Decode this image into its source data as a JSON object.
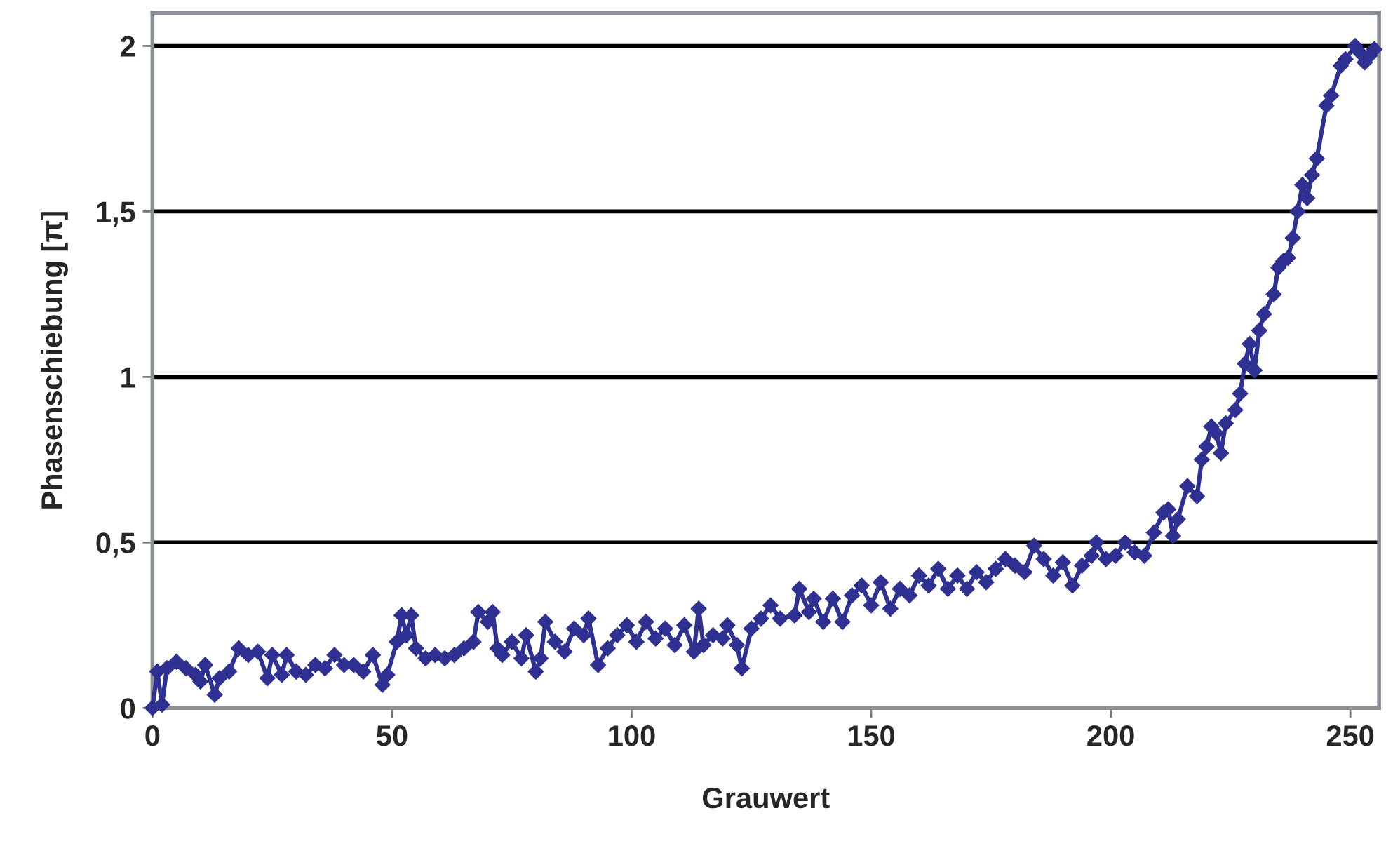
{
  "chart_data": {
    "type": "line",
    "xlabel": "Grauwert",
    "ylabel": "Phasenschiebung [π]",
    "xlim": [
      0,
      256
    ],
    "ylim": [
      0,
      2.1
    ],
    "xticks": [
      0,
      50,
      100,
      150,
      200,
      250
    ],
    "yticks": [
      0,
      {
        "value": 0.5,
        "label": "0,5"
      },
      1,
      {
        "value": 1.5,
        "label": "1,5"
      },
      2
    ],
    "grid": "y",
    "marker": "diamond",
    "line_style": "solid",
    "legend": false,
    "series": [
      {
        "color": "#2e3192",
        "x": [
          0,
          1,
          2,
          3,
          5,
          7,
          9,
          10,
          11,
          13,
          14,
          16,
          18,
          20,
          22,
          24,
          25,
          27,
          28,
          30,
          32,
          34,
          36,
          38,
          40,
          42,
          44,
          46,
          48,
          49,
          51,
          52,
          53,
          54,
          55,
          57,
          59,
          61,
          63,
          65,
          67,
          68,
          70,
          71,
          72,
          73,
          75,
          77,
          78,
          80,
          81,
          82,
          84,
          86,
          88,
          90,
          91,
          93,
          95,
          97,
          99,
          101,
          103,
          105,
          107,
          109,
          111,
          113,
          114,
          115,
          117,
          119,
          120,
          122,
          123,
          125,
          127,
          129,
          131,
          134,
          135,
          137,
          138,
          140,
          142,
          144,
          146,
          148,
          150,
          152,
          154,
          156,
          158,
          160,
          162,
          164,
          166,
          168,
          170,
          172,
          174,
          176,
          178,
          180,
          182,
          184,
          186,
          188,
          190,
          192,
          194,
          196,
          197,
          199,
          201,
          203,
          205,
          207,
          209,
          211,
          212,
          213,
          214,
          216,
          218,
          219,
          220,
          221,
          222,
          223,
          224,
          226,
          227,
          228,
          229,
          230,
          231,
          232,
          234,
          235,
          236,
          237,
          238,
          239,
          240,
          241,
          242,
          243,
          245,
          246,
          248,
          249,
          251,
          252,
          253,
          254,
          255
        ],
        "values": [
          0,
          0.11,
          0.01,
          0.12,
          0.14,
          0.12,
          0.1,
          0.08,
          0.13,
          0.04,
          0.09,
          0.11,
          0.18,
          0.16,
          0.17,
          0.09,
          0.16,
          0.1,
          0.16,
          0.11,
          0.1,
          0.13,
          0.12,
          0.16,
          0.13,
          0.13,
          0.11,
          0.16,
          0.07,
          0.1,
          0.2,
          0.28,
          0.22,
          0.28,
          0.18,
          0.15,
          0.16,
          0.15,
          0.16,
          0.18,
          0.2,
          0.29,
          0.26,
          0.29,
          0.18,
          0.16,
          0.2,
          0.15,
          0.22,
          0.11,
          0.15,
          0.26,
          0.2,
          0.17,
          0.24,
          0.22,
          0.27,
          0.13,
          0.18,
          0.22,
          0.25,
          0.2,
          0.26,
          0.21,
          0.24,
          0.19,
          0.25,
          0.17,
          0.3,
          0.19,
          0.22,
          0.21,
          0.25,
          0.19,
          0.12,
          0.24,
          0.27,
          0.31,
          0.27,
          0.28,
          0.36,
          0.29,
          0.33,
          0.26,
          0.33,
          0.26,
          0.34,
          0.37,
          0.31,
          0.38,
          0.3,
          0.36,
          0.34,
          0.4,
          0.37,
          0.42,
          0.36,
          0.4,
          0.36,
          0.41,
          0.38,
          0.42,
          0.45,
          0.43,
          0.41,
          0.49,
          0.45,
          0.4,
          0.44,
          0.37,
          0.43,
          0.46,
          0.5,
          0.45,
          0.46,
          0.5,
          0.47,
          0.46,
          0.53,
          0.59,
          0.6,
          0.52,
          0.57,
          0.67,
          0.64,
          0.75,
          0.79,
          0.85,
          0.83,
          0.77,
          0.86,
          0.9,
          0.95,
          1.04,
          1.1,
          1.02,
          1.14,
          1.19,
          1.25,
          1.33,
          1.35,
          1.36,
          1.42,
          1.5,
          1.58,
          1.54,
          1.61,
          1.66,
          1.82,
          1.85,
          1.94,
          1.96,
          2.0,
          1.98,
          1.95,
          1.97,
          1.99
        ]
      }
    ]
  }
}
